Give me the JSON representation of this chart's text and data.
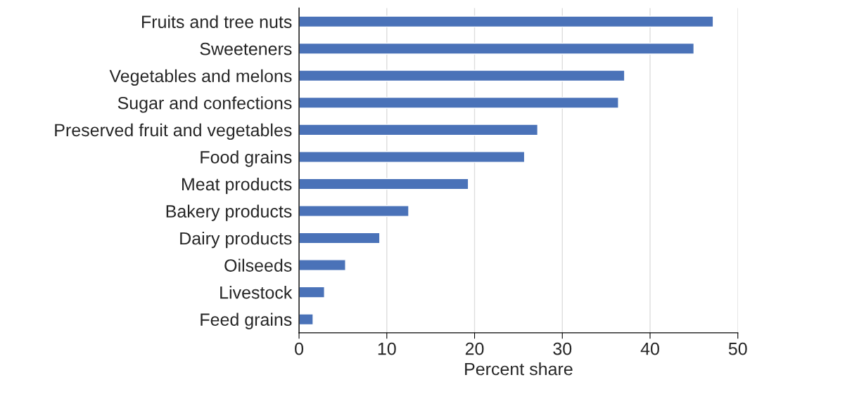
{
  "chart_data": {
    "type": "bar",
    "orientation": "horizontal",
    "xlabel": "Percent share",
    "categories": [
      "Fruits and tree nuts",
      "Sweeteners",
      "Vegetables and melons",
      "Sugar and confections",
      "Preserved fruit and vegetables",
      "Food grains",
      "Meat products",
      "Bakery products",
      "Dairy products",
      "Oilseeds",
      "Livestock",
      "Feed grains"
    ],
    "values": [
      47.2,
      45.0,
      37.1,
      36.4,
      27.2,
      25.7,
      19.3,
      12.5,
      9.2,
      5.3,
      2.9,
      1.6
    ],
    "color": "#4a72b8",
    "xlim": [
      0,
      50
    ],
    "xticks": [
      0,
      10,
      20,
      30,
      40,
      50
    ],
    "grid": "x"
  }
}
